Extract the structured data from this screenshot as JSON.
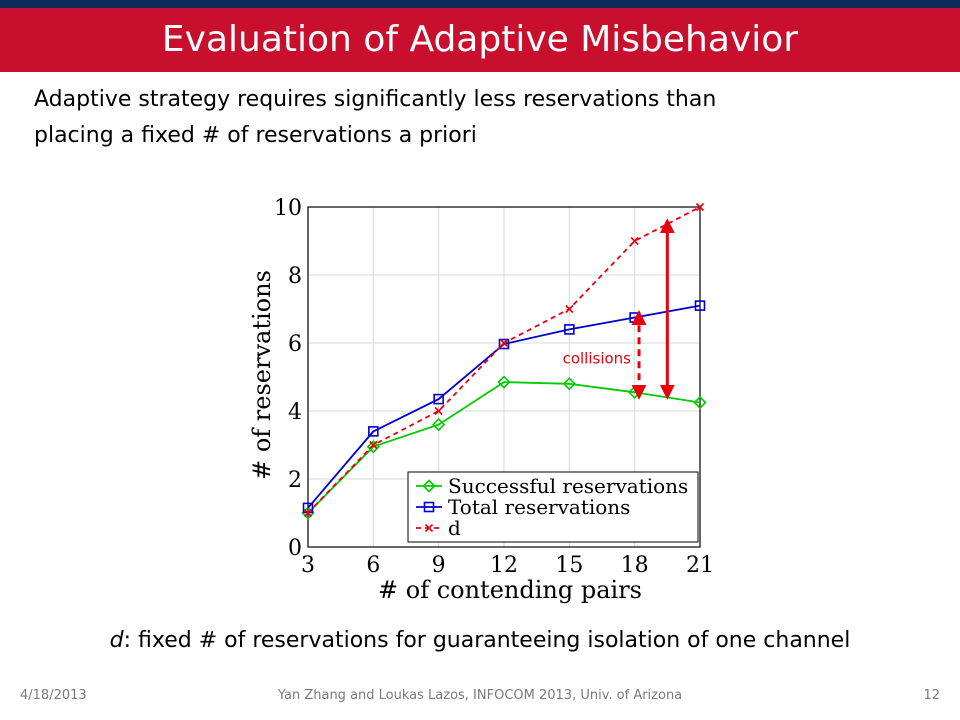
{
  "slide": {
    "title": "Evaluation of Adaptive Misbehavior",
    "body_line1": "Adaptive strategy requires significantly less reservations than",
    "body_line2": "placing a fixed # of reservations a priori",
    "caption_var": "d",
    "caption_rest": ": fixed # of reservations for guaranteeing isolation of one channel",
    "annotation": "collisions",
    "footer_date": "4/18/2013",
    "footer_center": "Yan Zhang and Loukas Lazos, INFOCOM 2013, Univ. of Arizona",
    "page_number": "12"
  },
  "colors": {
    "title_bar": "#c8102e",
    "top_strip": "#0d2a5c",
    "successful": "#00cc00",
    "total": "#0000cc",
    "d": "#e8000b",
    "arrow": "#e8000b",
    "annotation": "#e8000b"
  },
  "chart_data": {
    "type": "line",
    "x": [
      3,
      6,
      9,
      12,
      15,
      18,
      21
    ],
    "xlabel": "# of contending pairs",
    "ylabel": "# of reservations",
    "xlim": [
      3,
      21
    ],
    "ylim": [
      0,
      10
    ],
    "xticks": [
      "3",
      "6",
      "9",
      "12",
      "15",
      "18",
      "21"
    ],
    "yticks": [
      "0",
      "2",
      "4",
      "6",
      "8",
      "10"
    ],
    "grid": true,
    "legend_position": "bottom-right",
    "series": [
      {
        "name": "Successful reservations",
        "values": [
          1.0,
          2.95,
          3.6,
          4.85,
          4.8,
          4.55,
          4.25
        ],
        "marker": "diamond",
        "line": "solid"
      },
      {
        "name": "Total reservations",
        "values": [
          1.15,
          3.4,
          4.35,
          5.97,
          6.4,
          6.75,
          7.1
        ],
        "marker": "square",
        "line": "solid"
      },
      {
        "name": "d",
        "values": [
          1.0,
          3.0,
          4.0,
          6.0,
          7.0,
          9.0,
          10.0
        ],
        "marker": "x",
        "line": "dashed"
      }
    ],
    "annotations": [
      {
        "text": "collisions",
        "type": "double-arrow-dashed",
        "x": 18.2,
        "y_from": 4.55,
        "y_to": 6.75
      },
      {
        "type": "double-arrow-solid",
        "x": 19.5,
        "y_from": 4.55,
        "y_to": 9.45
      }
    ]
  }
}
